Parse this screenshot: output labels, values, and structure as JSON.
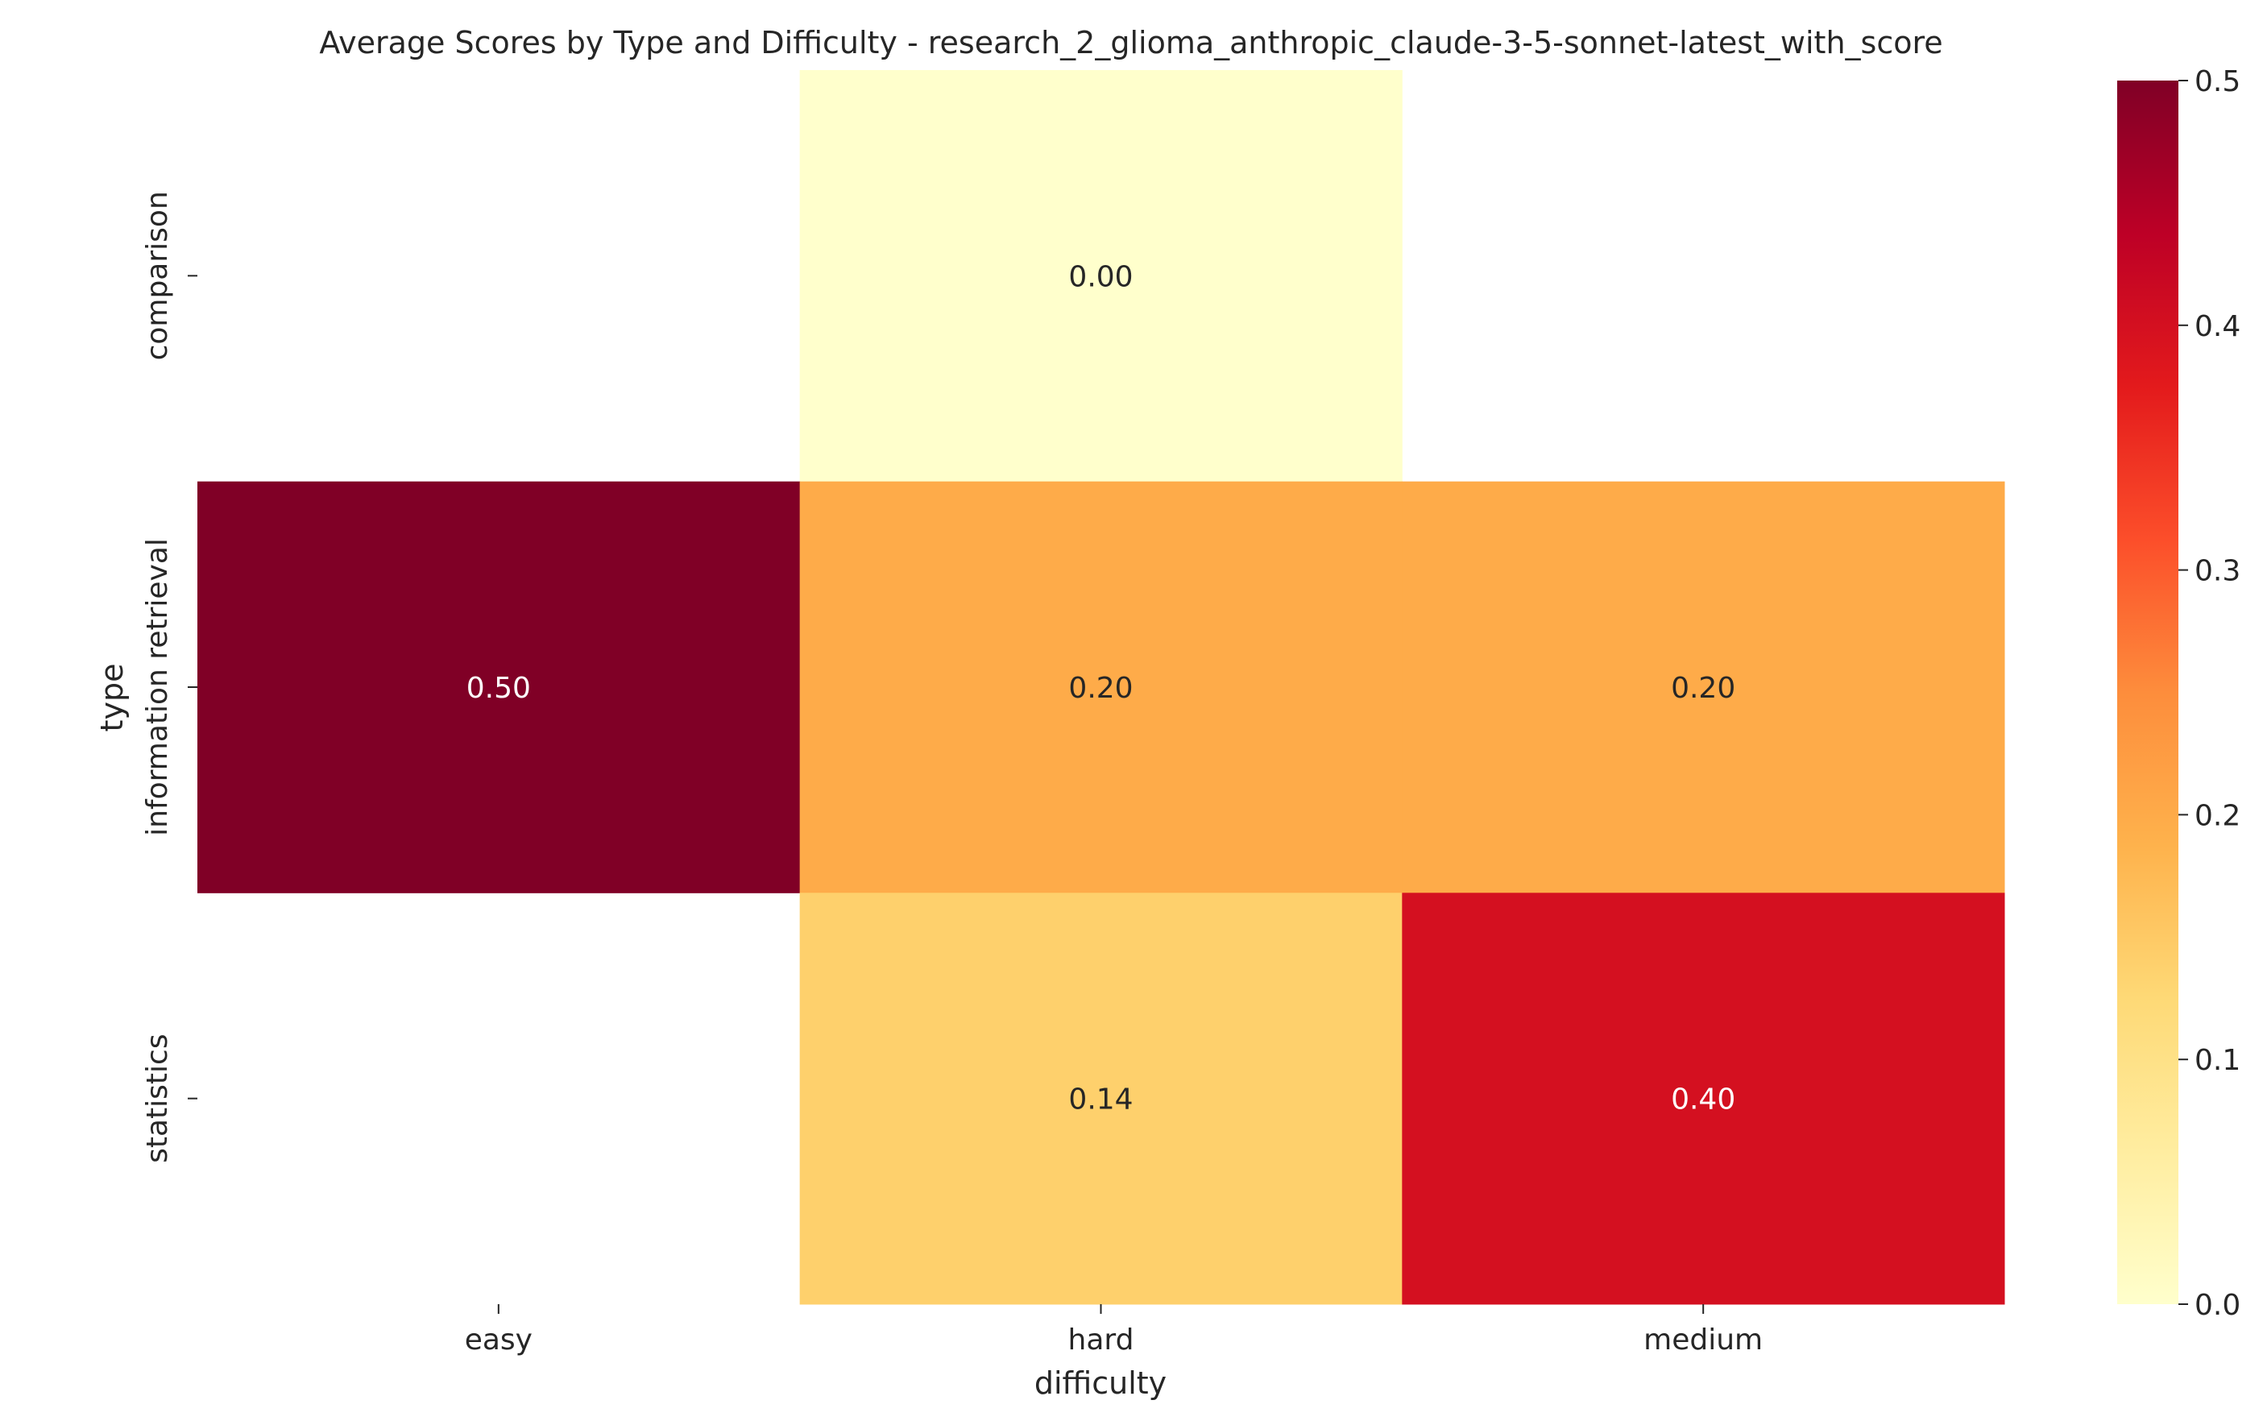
{
  "chart_data": {
    "type": "heatmap",
    "title": "Average Scores by Type and Difficulty - research_2_glioma_anthropic_claude-3-5-sonnet-latest_with_score",
    "xlabel": "difficulty",
    "ylabel": "type",
    "x_categories": [
      "easy",
      "hard",
      "medium"
    ],
    "y_categories": [
      "comparison",
      "information retrieval",
      "statistics"
    ],
    "values": [
      [
        null,
        0.0,
        null
      ],
      [
        0.5,
        0.2,
        0.2
      ],
      [
        null,
        0.14,
        0.4
      ]
    ],
    "value_labels": [
      [
        null,
        "0.00",
        null
      ],
      [
        "0.50",
        "0.20",
        "0.20"
      ],
      [
        null,
        "0.14",
        "0.40"
      ]
    ],
    "colorbar": {
      "range": [
        0,
        0.5
      ],
      "ticks": [
        0.0,
        0.1,
        0.2,
        0.3,
        0.4,
        0.5
      ],
      "tick_labels": [
        "0.0",
        "0.1",
        "0.2",
        "0.3",
        "0.4",
        "0.5"
      ],
      "colormap": "YlOrRd"
    },
    "grid": false
  }
}
